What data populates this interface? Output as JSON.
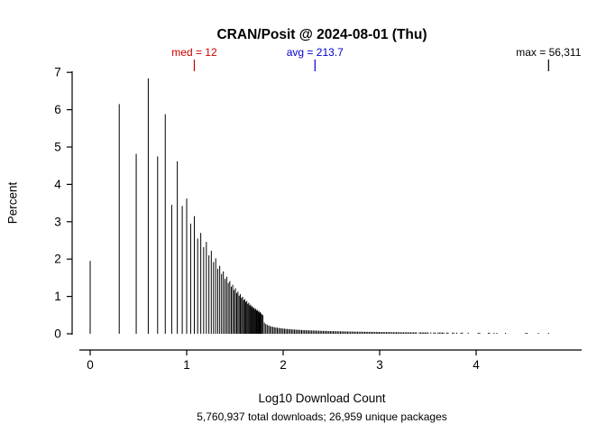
{
  "chart_data": {
    "type": "bar",
    "style": "vertical spike histogram (R type='h'), black 1px spikes, no grid, no legend",
    "title": "CRAN/Posit @ 2024-08-01 (Thu)",
    "xlabel": "Log10 Download Count",
    "ylabel": "Percent",
    "subtitle": "5,760,937 total downloads; 26,959 unique packages",
    "x_axis_is": "log10 of per-package download count",
    "y_axis_is": "percent of unique packages",
    "xlim": [
      -0.2,
      4.95
    ],
    "ylim": [
      0,
      7.1
    ],
    "x_ticks": [
      0,
      1,
      2,
      3,
      4
    ],
    "y_ticks": [
      0,
      1,
      2,
      3,
      4,
      5,
      6,
      7
    ],
    "annotations": {
      "med": {
        "label": "med = 12",
        "log10": 1.0792,
        "color": "#cc0000"
      },
      "avg": {
        "label": "avg = 213.7",
        "log10": 2.3298,
        "color": "#0000cc"
      },
      "max": {
        "label": "max = 56,311",
        "log10": 4.7506,
        "color": "#000000"
      }
    },
    "points_count_pct": [
      [
        1,
        1.95
      ],
      [
        2,
        6.15
      ],
      [
        3,
        4.82
      ],
      [
        4,
        6.84
      ],
      [
        5,
        4.75
      ],
      [
        6,
        5.88
      ],
      [
        7,
        3.45
      ],
      [
        8,
        4.62
      ],
      [
        9,
        3.42
      ],
      [
        10,
        3.62
      ],
      [
        11,
        2.95
      ],
      [
        12,
        3.15
      ],
      [
        13,
        2.55
      ],
      [
        14,
        2.7
      ],
      [
        15,
        2.32
      ],
      [
        16,
        2.46
      ],
      [
        17,
        2.1
      ],
      [
        18,
        2.22
      ],
      [
        19,
        1.92
      ],
      [
        20,
        2.02
      ],
      [
        21,
        1.74
      ],
      [
        22,
        1.82
      ],
      [
        23,
        1.6
      ],
      [
        24,
        1.67
      ],
      [
        25,
        1.47
      ],
      [
        26,
        1.53
      ],
      [
        27,
        1.36
      ],
      [
        28,
        1.41
      ],
      [
        29,
        1.26
      ],
      [
        30,
        1.31
      ],
      [
        31,
        1.17
      ],
      [
        32,
        1.22
      ],
      [
        33,
        1.09
      ],
      [
        34,
        1.13
      ],
      [
        35,
        1.02
      ],
      [
        36,
        1.06
      ],
      [
        37,
        0.96
      ],
      [
        38,
        0.99
      ],
      [
        39,
        0.9
      ],
      [
        40,
        0.93
      ],
      [
        41,
        0.85
      ],
      [
        42,
        0.88
      ],
      [
        43,
        0.8
      ],
      [
        44,
        0.83
      ],
      [
        45,
        0.76
      ],
      [
        46,
        0.78
      ],
      [
        47,
        0.72
      ],
      [
        48,
        0.74
      ],
      [
        49,
        0.68
      ],
      [
        50,
        0.7
      ],
      [
        51,
        0.65
      ],
      [
        52,
        0.67
      ],
      [
        53,
        0.62
      ],
      [
        54,
        0.64
      ],
      [
        55,
        0.59
      ],
      [
        56,
        0.61
      ],
      [
        57,
        0.56
      ],
      [
        58,
        0.58
      ],
      [
        59,
        0.54
      ],
      [
        60,
        0.52
      ]
    ],
    "tail": {
      "description": "near-zero rug of remaining unique download counts out to the maximum",
      "log10_start": 1.79,
      "log10_end": 4.7506,
      "samples": 200,
      "pct_start": 0.5,
      "pct_end": 0.02,
      "shape": 0.35,
      "sparse_after": 3.3
    }
  }
}
